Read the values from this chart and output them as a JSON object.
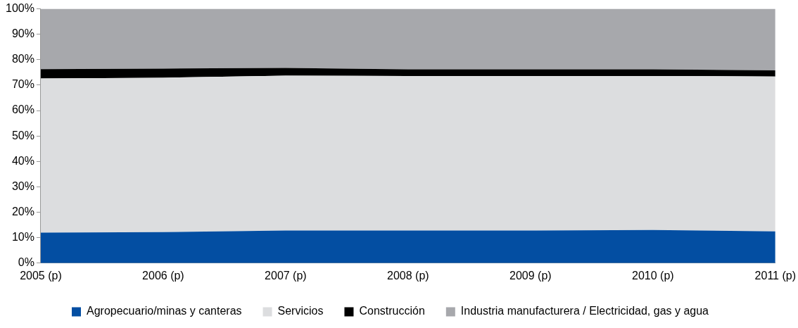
{
  "chart_data": {
    "type": "area",
    "stacked": true,
    "categories": [
      "2005 (p)",
      "2006 (p)",
      "2007 (p)",
      "2008 (p)",
      "2009 (p)",
      "2010 (p)",
      "2011 (p)"
    ],
    "series": [
      {
        "name": "Agropecuario/minas y canteras",
        "color": "#034ea2",
        "values": [
          12.0,
          12.2,
          12.8,
          12.8,
          12.8,
          13.0,
          12.5
        ]
      },
      {
        "name": "Servicios",
        "color": "#dcdddf",
        "values": [
          60.6,
          60.7,
          60.9,
          60.8,
          60.8,
          60.6,
          60.9
        ]
      },
      {
        "name": "Construcción",
        "color": "#000000",
        "values": [
          3.7,
          3.6,
          3.1,
          2.6,
          2.6,
          2.6,
          2.4
        ]
      },
      {
        "name": "Industria manufacturera / Electricidad, gas y agua",
        "color": "#a7a8ac",
        "values": [
          23.7,
          23.5,
          23.2,
          23.8,
          23.8,
          23.8,
          24.2
        ]
      }
    ],
    "ylim": [
      0,
      100
    ],
    "yticks": [
      {
        "value": 0,
        "label": "0%"
      },
      {
        "value": 10,
        "label": "10%"
      },
      {
        "value": 20,
        "label": "20%"
      },
      {
        "value": 30,
        "label": "30%"
      },
      {
        "value": 40,
        "label": "40%"
      },
      {
        "value": 50,
        "label": "50%"
      },
      {
        "value": 60,
        "label": "60%"
      },
      {
        "value": 70,
        "label": "70%"
      },
      {
        "value": 80,
        "label": "80%"
      },
      {
        "value": 90,
        "label": "90%"
      },
      {
        "value": 100,
        "label": "100%"
      }
    ],
    "grid": false,
    "legend": "bottom"
  }
}
